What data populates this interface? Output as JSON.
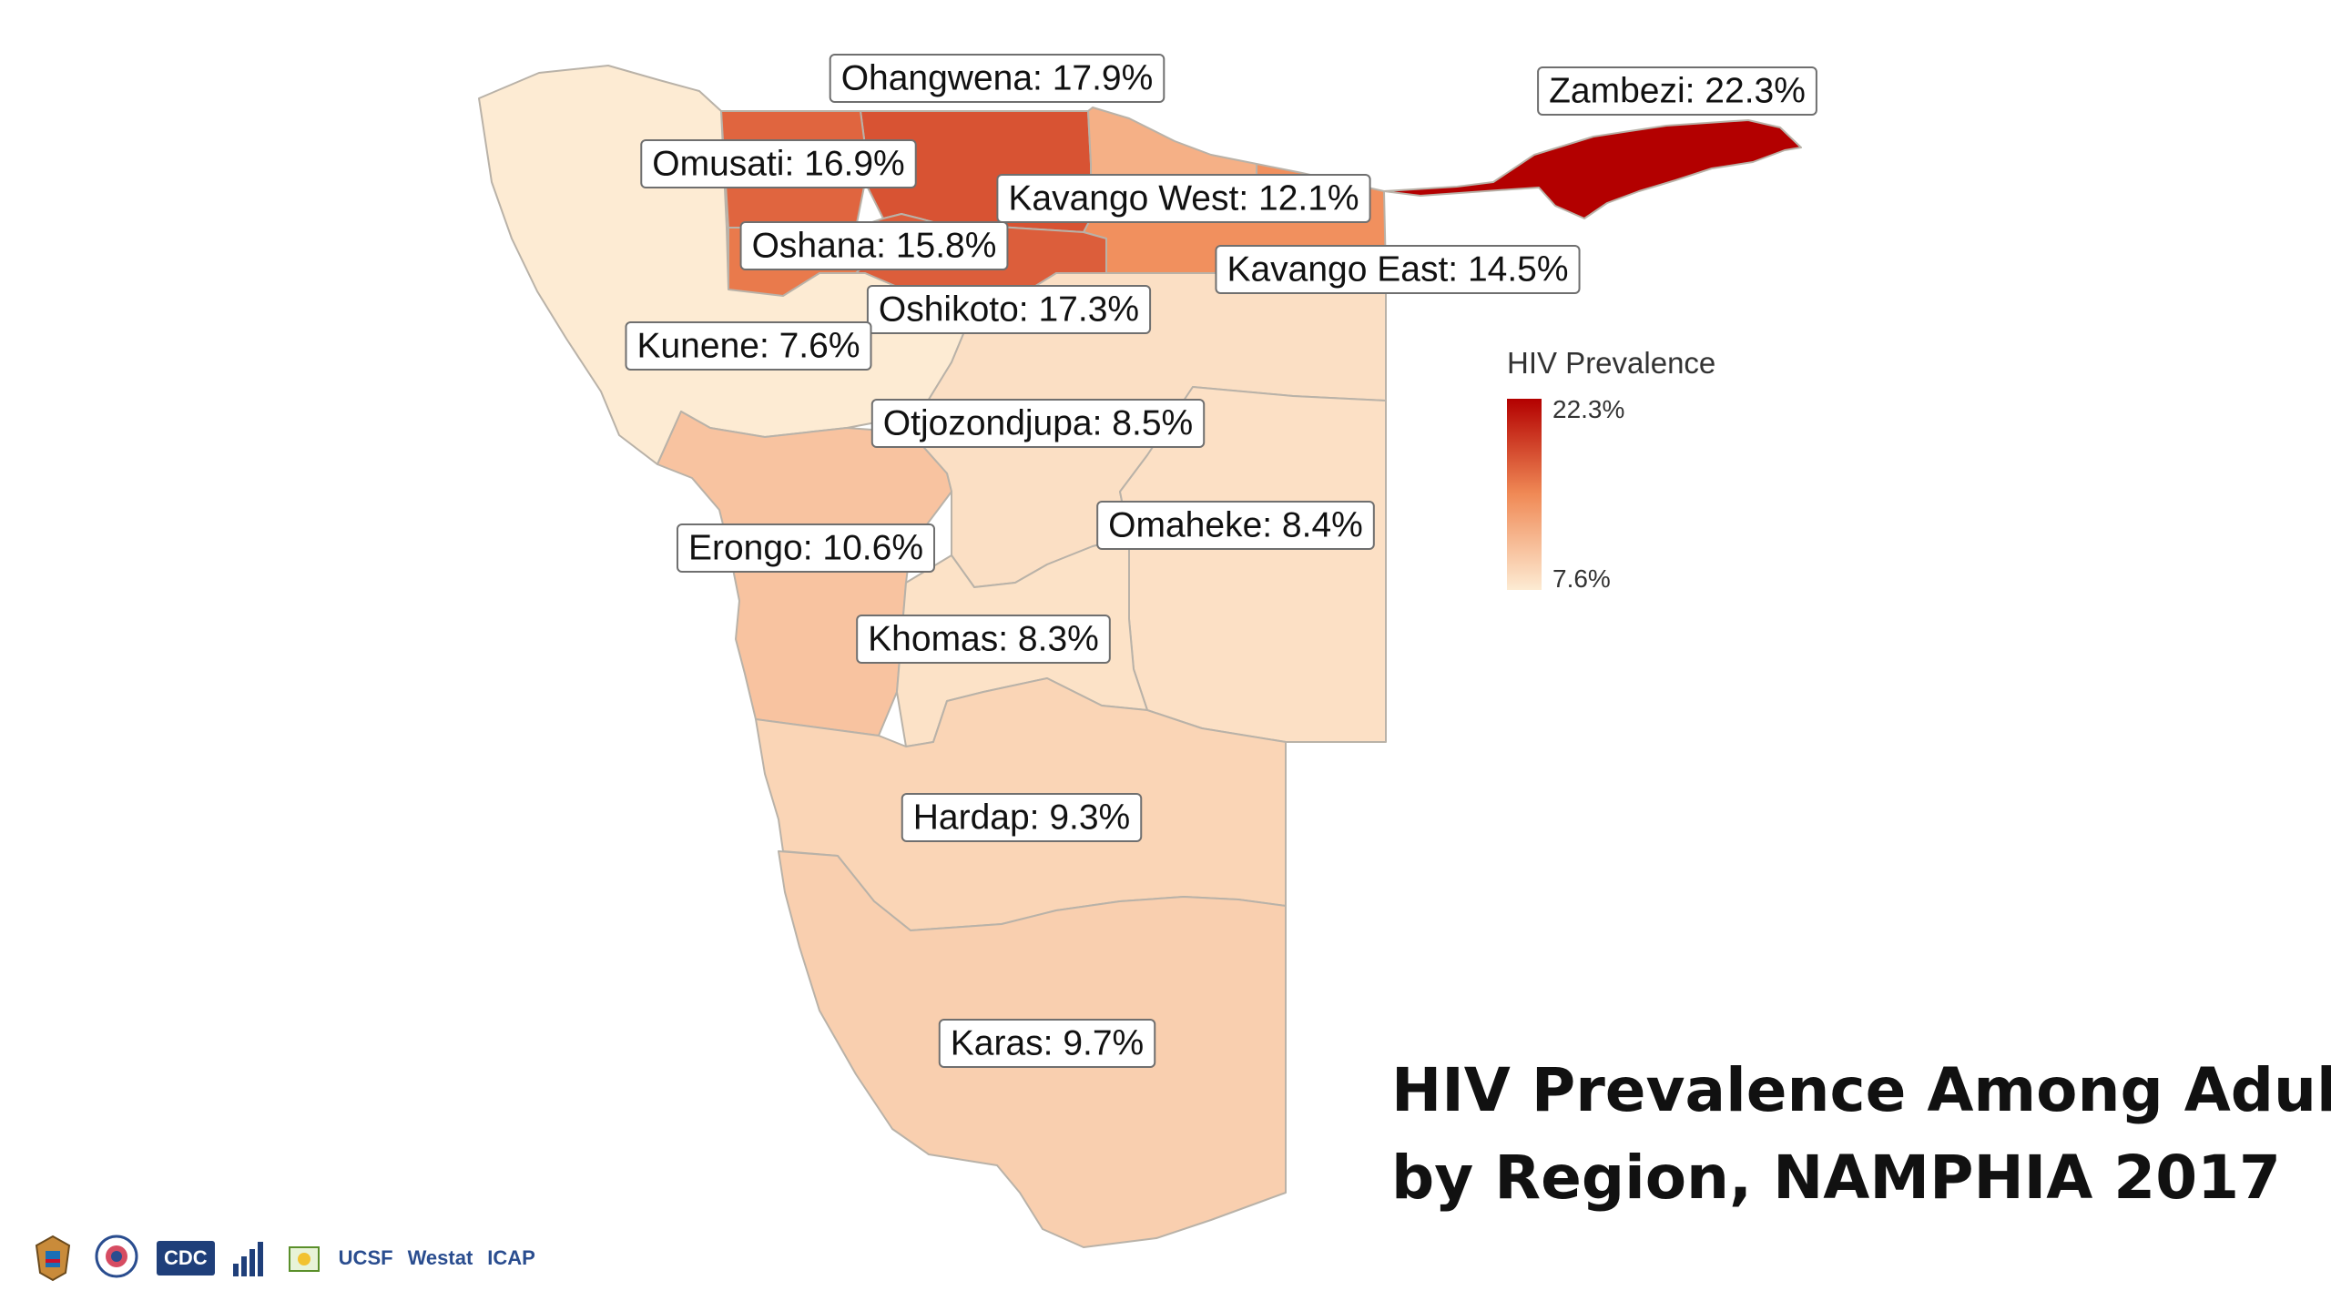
{
  "title": {
    "line1": "HIV Prevalence Among Adults,",
    "line2": "by Region, NAMPHIA 2017"
  },
  "legend": {
    "title": "HIV Prevalence",
    "max_label": "22.3%",
    "min_label": "7.6%",
    "min_value": 7.6,
    "max_value": 22.3,
    "color_low": "#fdebd3",
    "color_mid": "#f08a56",
    "color_high": "#b30000"
  },
  "regions": [
    {
      "name": "Ohangwena",
      "value": 17.9,
      "label": "Ohangwena: 17.9%"
    },
    {
      "name": "Zambezi",
      "value": 22.3,
      "label": "Zambezi: 22.3%"
    },
    {
      "name": "Omusati",
      "value": 16.9,
      "label": "Omusati: 16.9%"
    },
    {
      "name": "Kavango West",
      "value": 12.1,
      "label": "Kavango West: 12.1%"
    },
    {
      "name": "Oshana",
      "value": 15.8,
      "label": "Oshana: 15.8%"
    },
    {
      "name": "Kavango East",
      "value": 14.5,
      "label": "Kavango East: 14.5%"
    },
    {
      "name": "Oshikoto",
      "value": 17.3,
      "label": "Oshikoto: 17.3%"
    },
    {
      "name": "Kunene",
      "value": 7.6,
      "label": "Kunene: 7.6%"
    },
    {
      "name": "Otjozondjupa",
      "value": 8.5,
      "label": "Otjozondjupa: 8.5%"
    },
    {
      "name": "Omaheke",
      "value": 8.4,
      "label": "Omaheke: 8.4%"
    },
    {
      "name": "Erongo",
      "value": 10.6,
      "label": "Erongo: 10.6%"
    },
    {
      "name": "Khomas",
      "value": 8.3,
      "label": "Khomas: 8.3%"
    },
    {
      "name": "Hardap",
      "value": 9.3,
      "label": "Hardap: 9.3%"
    },
    {
      "name": "Karas",
      "value": 9.7,
      "label": "Karas: 9.7%"
    }
  ],
  "logos": {
    "cdc": "CDC",
    "ucsf": "UCSF",
    "westat": "Westat",
    "icap": "ICAP"
  }
}
